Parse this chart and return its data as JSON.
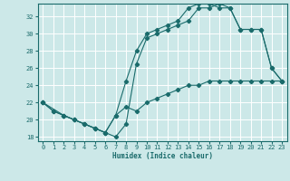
{
  "title": "",
  "xlabel": "Humidex (Indice chaleur)",
  "bg_color": "#cce8e8",
  "line_color": "#1a6b6b",
  "grid_color": "#ffffff",
  "xlim": [
    -0.5,
    23.5
  ],
  "ylim": [
    17.5,
    33.5
  ],
  "xticks": [
    0,
    1,
    2,
    3,
    4,
    5,
    6,
    7,
    8,
    9,
    10,
    11,
    12,
    13,
    14,
    15,
    16,
    17,
    18,
    19,
    20,
    21,
    22,
    23
  ],
  "yticks": [
    18,
    20,
    22,
    24,
    26,
    28,
    30,
    32
  ],
  "line1_x": [
    0,
    1,
    2,
    3,
    4,
    5,
    6,
    7,
    8,
    9,
    10,
    11,
    12,
    13,
    14,
    15,
    16,
    17,
    18,
    19,
    20,
    21,
    22,
    23
  ],
  "line1_y": [
    22.0,
    21.0,
    20.5,
    20.0,
    19.5,
    19.0,
    18.5,
    20.5,
    21.5,
    21.0,
    22.0,
    22.5,
    23.0,
    23.5,
    24.0,
    24.0,
    24.5,
    24.5,
    24.5,
    24.5,
    24.5,
    24.5,
    24.5,
    24.5
  ],
  "line2_x": [
    0,
    1,
    2,
    3,
    4,
    5,
    6,
    7,
    8,
    9,
    10,
    11,
    12,
    13,
    14,
    15,
    16,
    17,
    18,
    19,
    20,
    21,
    22,
    23
  ],
  "line2_y": [
    22.0,
    21.0,
    20.5,
    20.0,
    19.5,
    19.0,
    18.5,
    20.5,
    24.5,
    28.0,
    30.0,
    30.5,
    31.0,
    31.5,
    33.0,
    33.5,
    33.5,
    33.0,
    33.0,
    30.5,
    30.5,
    30.5,
    26.0,
    24.5
  ],
  "line3_x": [
    0,
    2,
    3,
    4,
    5,
    6,
    7,
    8,
    9,
    10,
    11,
    12,
    13,
    14,
    15,
    16,
    17,
    18,
    19,
    20,
    21,
    22,
    23
  ],
  "line3_y": [
    22.0,
    20.5,
    20.0,
    19.5,
    19.0,
    18.5,
    18.0,
    19.5,
    26.5,
    29.5,
    30.0,
    30.5,
    31.0,
    31.5,
    33.0,
    33.0,
    33.5,
    33.0,
    30.5,
    30.5,
    30.5,
    26.0,
    24.5
  ]
}
